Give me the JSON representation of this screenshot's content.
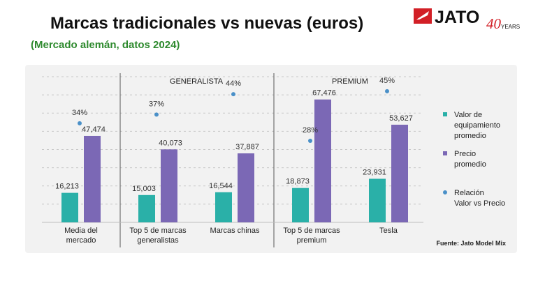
{
  "header": {
    "title": "Marcas tradicionales vs nuevas (euros)",
    "subtitle": "(Mercado alemán, datos 2024)"
  },
  "logo": {
    "brand": "JATO",
    "anniversary_number": "40",
    "anniversary_word": "YEARS"
  },
  "colors": {
    "teal": "#2ab0a8",
    "purple": "#7b68b5",
    "dot": "#4a90c8",
    "title": "#111111",
    "subtitle": "#2e8a2e",
    "brand_red": "#d21f26"
  },
  "chart_data": {
    "type": "bar",
    "title": "Marcas tradicionales vs nuevas (euros)",
    "subtitle": "(Mercado alemán, datos 2024)",
    "categories": [
      [
        "Media del",
        "mercado"
      ],
      [
        "Top 5 de marcas",
        "generalistas"
      ],
      [
        "Marcas chinas"
      ],
      [
        "Top 5 de marcas",
        "premium"
      ],
      [
        "Tesla"
      ]
    ],
    "groups": [
      {
        "label": "GENERALISTA",
        "from": 1,
        "to": 2
      },
      {
        "label": "PREMIUM",
        "from": 3,
        "to": 4
      }
    ],
    "series": [
      {
        "name": "Valor de equipamiento promedio",
        "legend_lines": [
          "Valor de",
          "equipamiento",
          "promedio"
        ],
        "color": "#2ab0a8",
        "values": [
          16213,
          15003,
          16544,
          18873,
          23931
        ],
        "labels": [
          "16,213",
          "15,003",
          "16,544",
          "18,873",
          "23,931"
        ]
      },
      {
        "name": "Precio promedio",
        "legend_lines": [
          "Precio",
          "promedio"
        ],
        "color": "#7b68b5",
        "values": [
          47474,
          40073,
          37887,
          67476,
          53627
        ],
        "labels": [
          "47,474",
          "40,073",
          "37,887",
          "67,476",
          "53,627"
        ]
      },
      {
        "name": "Relación Valor vs Precio",
        "legend_lines": [
          "Relación",
          "Valor vs Precio"
        ],
        "color": "#4a90c8",
        "type": "scatter",
        "values": [
          34,
          37,
          44,
          28,
          45
        ],
        "labels": [
          "34%",
          "37%",
          "44%",
          "28%",
          "45%"
        ]
      }
    ],
    "ylim": [
      0,
      80000
    ],
    "ratio_range": [
      0,
      50
    ],
    "source": "Fuente: Jato Model Mix"
  }
}
